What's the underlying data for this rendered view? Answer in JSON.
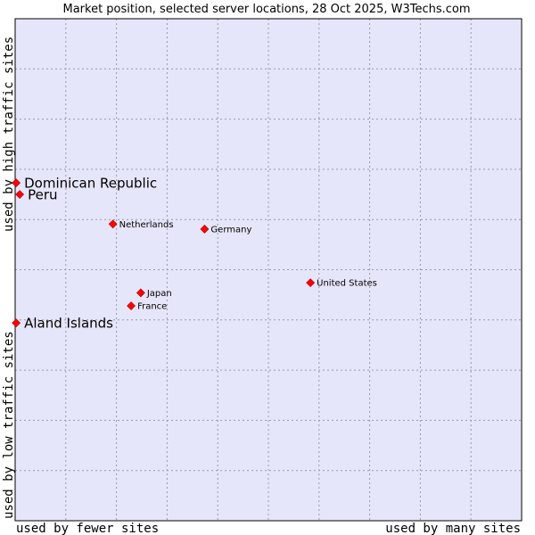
{
  "chart_data": {
    "type": "scatter",
    "title": "Market position, selected server locations, 28 Oct 2025, W3Techs.com",
    "xlabel_left": "used by fewer sites",
    "xlabel_right": "used by many sites",
    "ylabel_bottom": "used by low traffic sites",
    "ylabel_top": "used by high traffic sites",
    "xlim": [
      0,
      100
    ],
    "ylim": [
      0,
      100
    ],
    "grid": true,
    "colors": {
      "plot_bg": "#e6e6fa",
      "grid": "#9999aa",
      "border": "#000000",
      "marker": "#ff0000"
    },
    "points": [
      {
        "label": "Dominican Republic",
        "x": 0.2,
        "y": 67.3,
        "emphasis": true
      },
      {
        "label": "Peru",
        "x": 0.9,
        "y": 65.0,
        "emphasis": true
      },
      {
        "label": "Netherlands",
        "x": 19.3,
        "y": 59.1,
        "emphasis": false
      },
      {
        "label": "Germany",
        "x": 37.4,
        "y": 58.1,
        "emphasis": false
      },
      {
        "label": "United States",
        "x": 58.3,
        "y": 47.4,
        "emphasis": false
      },
      {
        "label": "Japan",
        "x": 24.8,
        "y": 45.4,
        "emphasis": false
      },
      {
        "label": "France",
        "x": 22.9,
        "y": 42.8,
        "emphasis": false
      },
      {
        "label": "Aland Islands",
        "x": 0.2,
        "y": 39.4,
        "emphasis": true
      }
    ]
  }
}
